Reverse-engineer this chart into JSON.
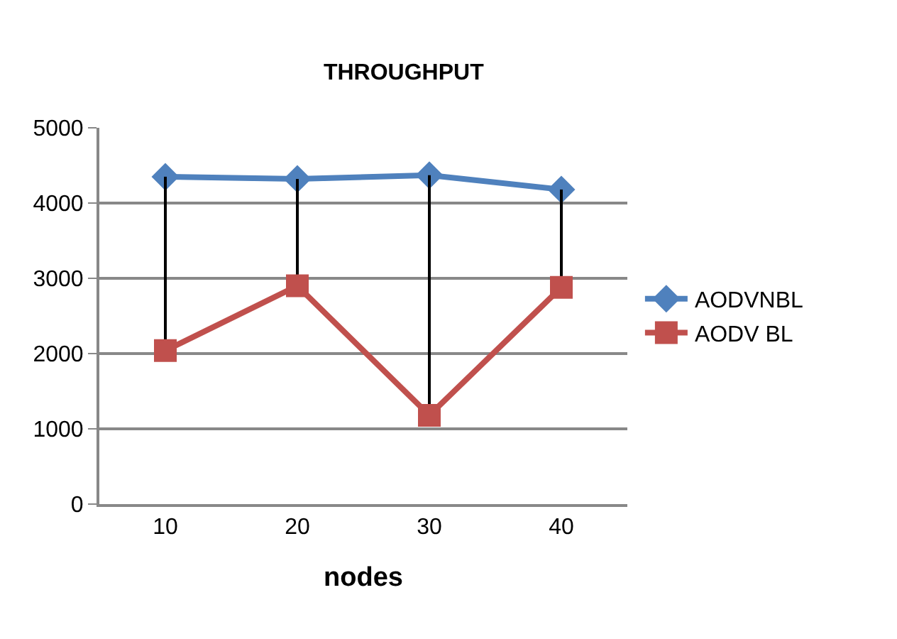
{
  "chart_data": {
    "type": "line",
    "title": "THROUGHPUT",
    "xlabel": "nodes",
    "categories": [
      "10",
      "20",
      "30",
      "40"
    ],
    "series": [
      {
        "name": "AODVNBL",
        "color": "#4f81bd",
        "marker": "diamond",
        "values": [
          4350,
          4320,
          4370,
          4180
        ]
      },
      {
        "name": "AODV BL",
        "color": "#c0504d",
        "marker": "square",
        "values": [
          2040,
          2900,
          1180,
          2880
        ],
        "errors": [
          [
            2040,
            4350
          ],
          [
            2900,
            4320
          ],
          [
            1180,
            4370
          ],
          [
            2880,
            4180
          ]
        ]
      }
    ],
    "ylim": [
      0,
      5000
    ],
    "yticks": [
      0,
      1000,
      2000,
      3000,
      4000,
      5000
    ],
    "grid": "y",
    "legend": "right",
    "line_style": "solid"
  }
}
